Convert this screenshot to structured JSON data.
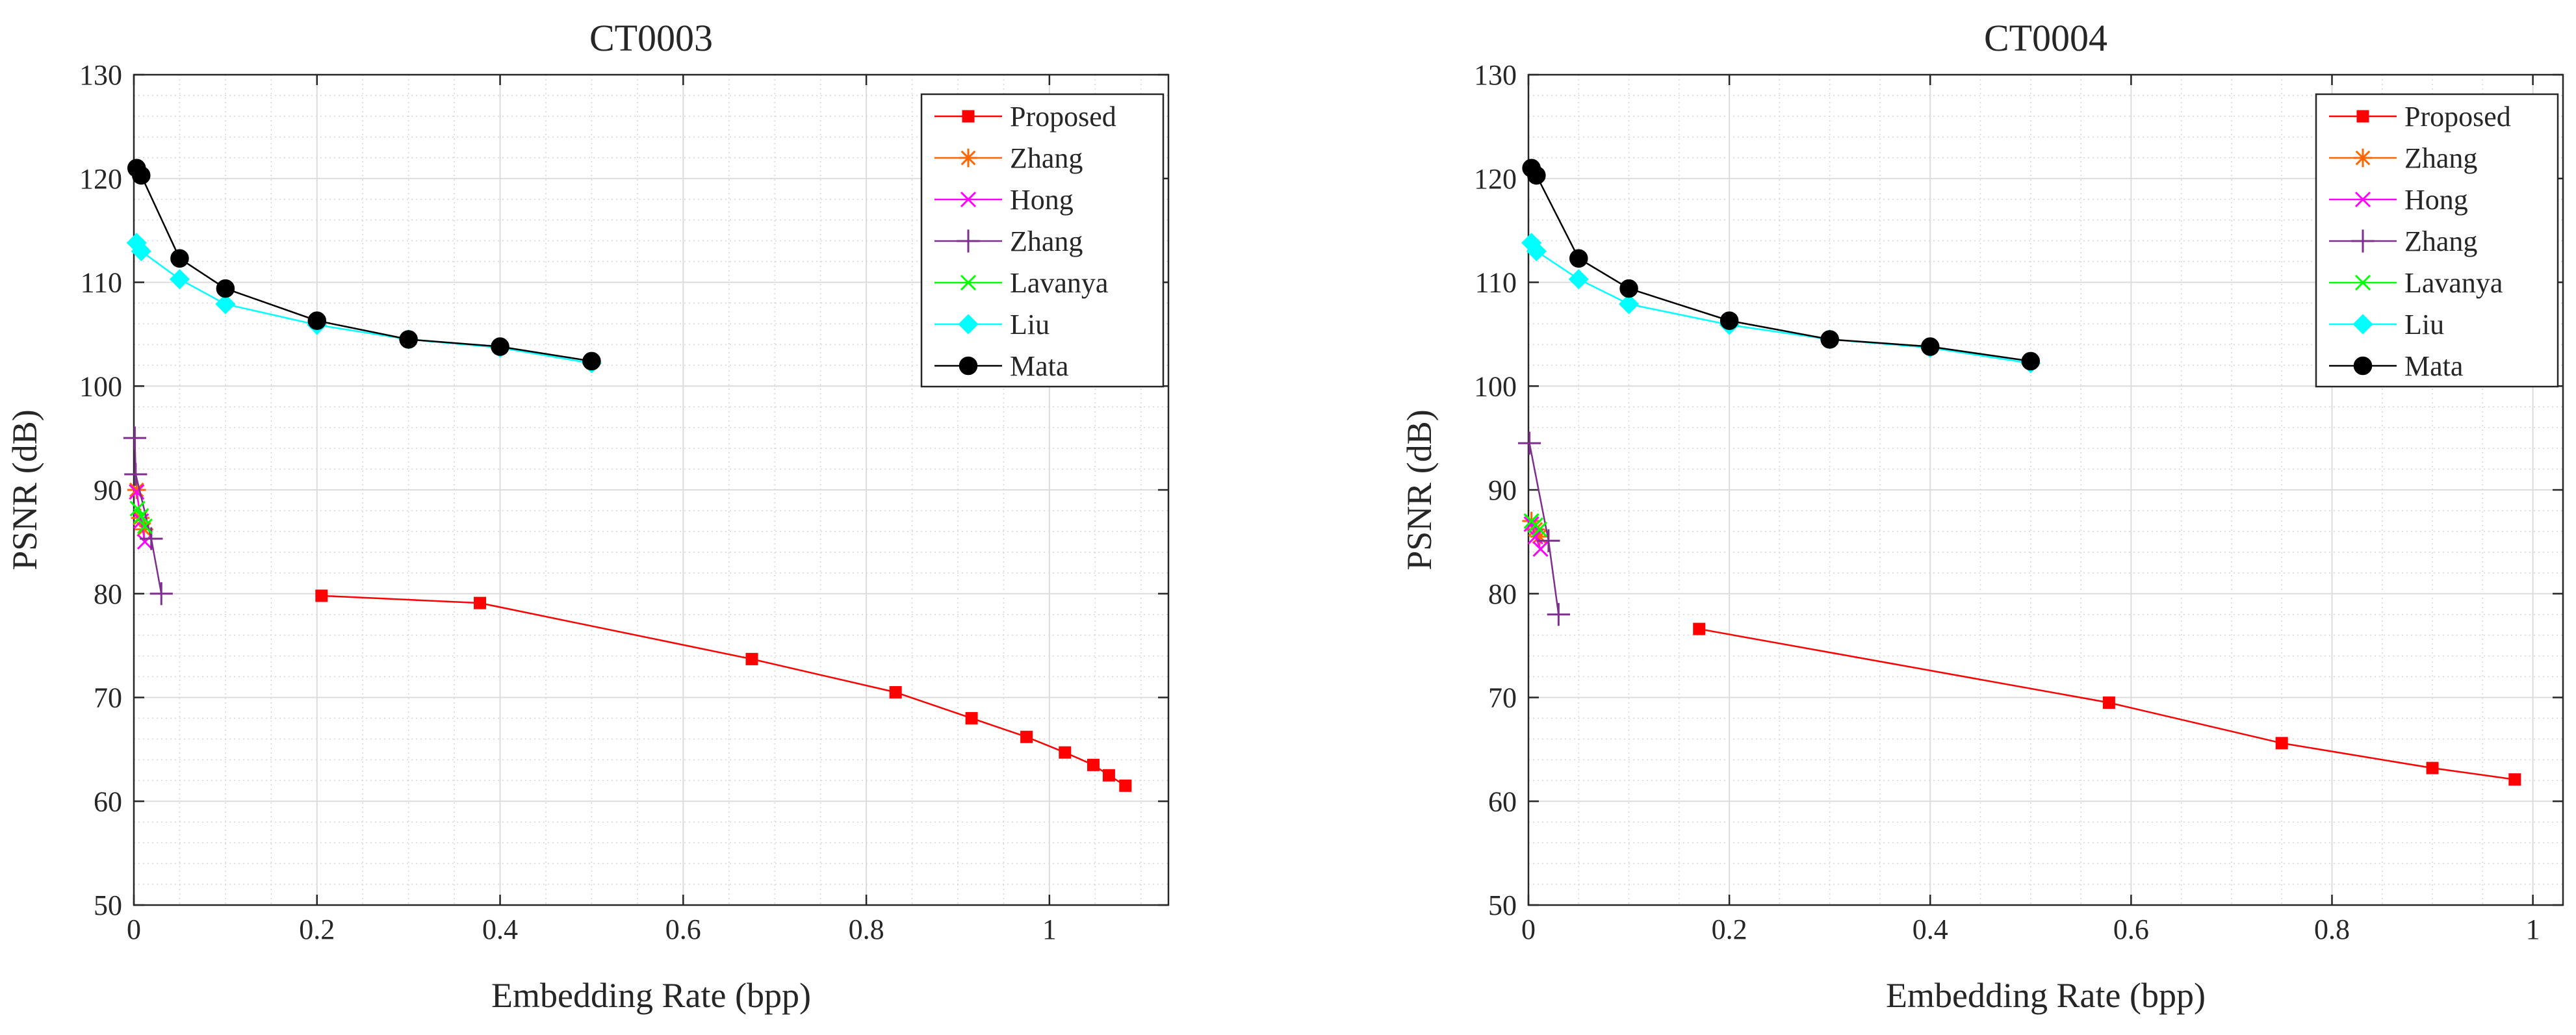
{
  "chart_data": [
    {
      "type": "line",
      "title": "CT0003",
      "xlabel": "Embedding Rate (bpp)",
      "ylabel": "PSNR (dB)",
      "xlim": [
        0,
        1.13
      ],
      "ylim": [
        50,
        130
      ],
      "xticks": [
        0,
        0.2,
        0.4,
        0.6,
        0.8,
        1
      ],
      "xtick_labels": [
        "0",
        "0.2",
        "0.4",
        "0.6",
        "0.8",
        "1"
      ],
      "yticks": [
        50,
        60,
        70,
        80,
        90,
        100,
        110,
        120,
        130
      ],
      "ytick_labels": [
        "50",
        "60",
        "70",
        "80",
        "90",
        "100",
        "110",
        "120",
        "130"
      ],
      "grid": true,
      "legend_position": "top-right",
      "series": [
        {
          "name": "Proposed",
          "color": "#ff0000",
          "marker": "square",
          "x": [
            0.205,
            0.378,
            0.675,
            0.832,
            0.915,
            0.975,
            1.017,
            1.048,
            1.065,
            1.083
          ],
          "y": [
            79.8,
            79.1,
            73.7,
            70.5,
            68.0,
            66.2,
            64.7,
            63.5,
            62.5,
            61.5
          ]
        },
        {
          "name": "Zhang",
          "color": "#ff6600",
          "marker": "star",
          "x": [
            0.003,
            0.007,
            0.011
          ],
          "y": [
            90.0,
            87.3,
            86.2
          ]
        },
        {
          "name": "Hong",
          "color": "#ff00ff",
          "marker": "x",
          "x": [
            0.003,
            0.008,
            0.012
          ],
          "y": [
            89.8,
            87.0,
            85.0
          ]
        },
        {
          "name": "Zhang",
          "color": "#7e2f8e",
          "marker": "plus",
          "x": [
            0.001,
            0.002,
            0.019,
            0.03
          ],
          "y": [
            95.0,
            91.5,
            85.3,
            80.0
          ]
        },
        {
          "name": "Lavanya",
          "color": "#00ff00",
          "marker": "x",
          "x": [
            0.004,
            0.008,
            0.012
          ],
          "y": [
            88.2,
            87.5,
            86.5
          ]
        },
        {
          "name": "Liu",
          "color": "#00ffff",
          "marker": "diamond",
          "x": [
            0.003,
            0.008,
            0.05,
            0.1,
            0.2,
            0.3,
            0.4,
            0.5
          ],
          "y": [
            113.8,
            113.0,
            110.3,
            107.9,
            105.9,
            104.5,
            103.7,
            102.2
          ]
        },
        {
          "name": "Mata",
          "color": "#000000",
          "marker": "circle",
          "x": [
            0.003,
            0.008,
            0.05,
            0.1,
            0.2,
            0.3,
            0.4,
            0.5
          ],
          "y": [
            121.0,
            120.3,
            112.3,
            109.4,
            106.3,
            104.5,
            103.8,
            102.4
          ]
        }
      ]
    },
    {
      "type": "line",
      "title": "CT0004",
      "xlabel": "Embedding Rate (bpp)",
      "ylabel": "PSNR (dB)",
      "xlim": [
        0,
        1.03
      ],
      "ylim": [
        50,
        130
      ],
      "xticks": [
        0,
        0.2,
        0.4,
        0.6,
        0.8,
        1
      ],
      "xtick_labels": [
        "0",
        "0.2",
        "0.4",
        "0.6",
        "0.8",
        "1"
      ],
      "yticks": [
        50,
        60,
        70,
        80,
        90,
        100,
        110,
        120,
        130
      ],
      "ytick_labels": [
        "50",
        "60",
        "70",
        "80",
        "90",
        "100",
        "110",
        "120",
        "130"
      ],
      "grid": true,
      "legend_position": "top-right",
      "series": [
        {
          "name": "Proposed",
          "color": "#ff0000",
          "marker": "square",
          "x": [
            0.17,
            0.578,
            0.75,
            0.9,
            0.982
          ],
          "y": [
            76.6,
            69.5,
            65.6,
            63.2,
            62.1
          ]
        },
        {
          "name": "Zhang",
          "color": "#ff6600",
          "marker": "star",
          "x": [
            0.003,
            0.007,
            0.011
          ],
          "y": [
            87.0,
            86.2,
            85.5
          ]
        },
        {
          "name": "Hong",
          "color": "#ff00ff",
          "marker": "x",
          "x": [
            0.003,
            0.007,
            0.012
          ],
          "y": [
            86.7,
            85.5,
            84.3
          ]
        },
        {
          "name": "Zhang",
          "color": "#7e2f8e",
          "marker": "plus",
          "x": [
            0.001,
            0.02,
            0.03
          ],
          "y": [
            94.5,
            85.1,
            78.0
          ]
        },
        {
          "name": "Lavanya",
          "color": "#00ff00",
          "marker": "x",
          "x": [
            0.003,
            0.007,
            0.011
          ],
          "y": [
            87.0,
            86.6,
            86.2
          ]
        },
        {
          "name": "Liu",
          "color": "#00ffff",
          "marker": "diamond",
          "x": [
            0.003,
            0.008,
            0.05,
            0.1,
            0.2,
            0.3,
            0.4,
            0.5
          ],
          "y": [
            113.8,
            113.0,
            110.3,
            107.9,
            105.9,
            104.5,
            103.7,
            102.2
          ]
        },
        {
          "name": "Mata",
          "color": "#000000",
          "marker": "circle",
          "x": [
            0.003,
            0.008,
            0.05,
            0.1,
            0.2,
            0.3,
            0.4,
            0.5
          ],
          "y": [
            121.0,
            120.3,
            112.3,
            109.4,
            106.3,
            104.5,
            103.8,
            102.4
          ]
        }
      ]
    }
  ]
}
